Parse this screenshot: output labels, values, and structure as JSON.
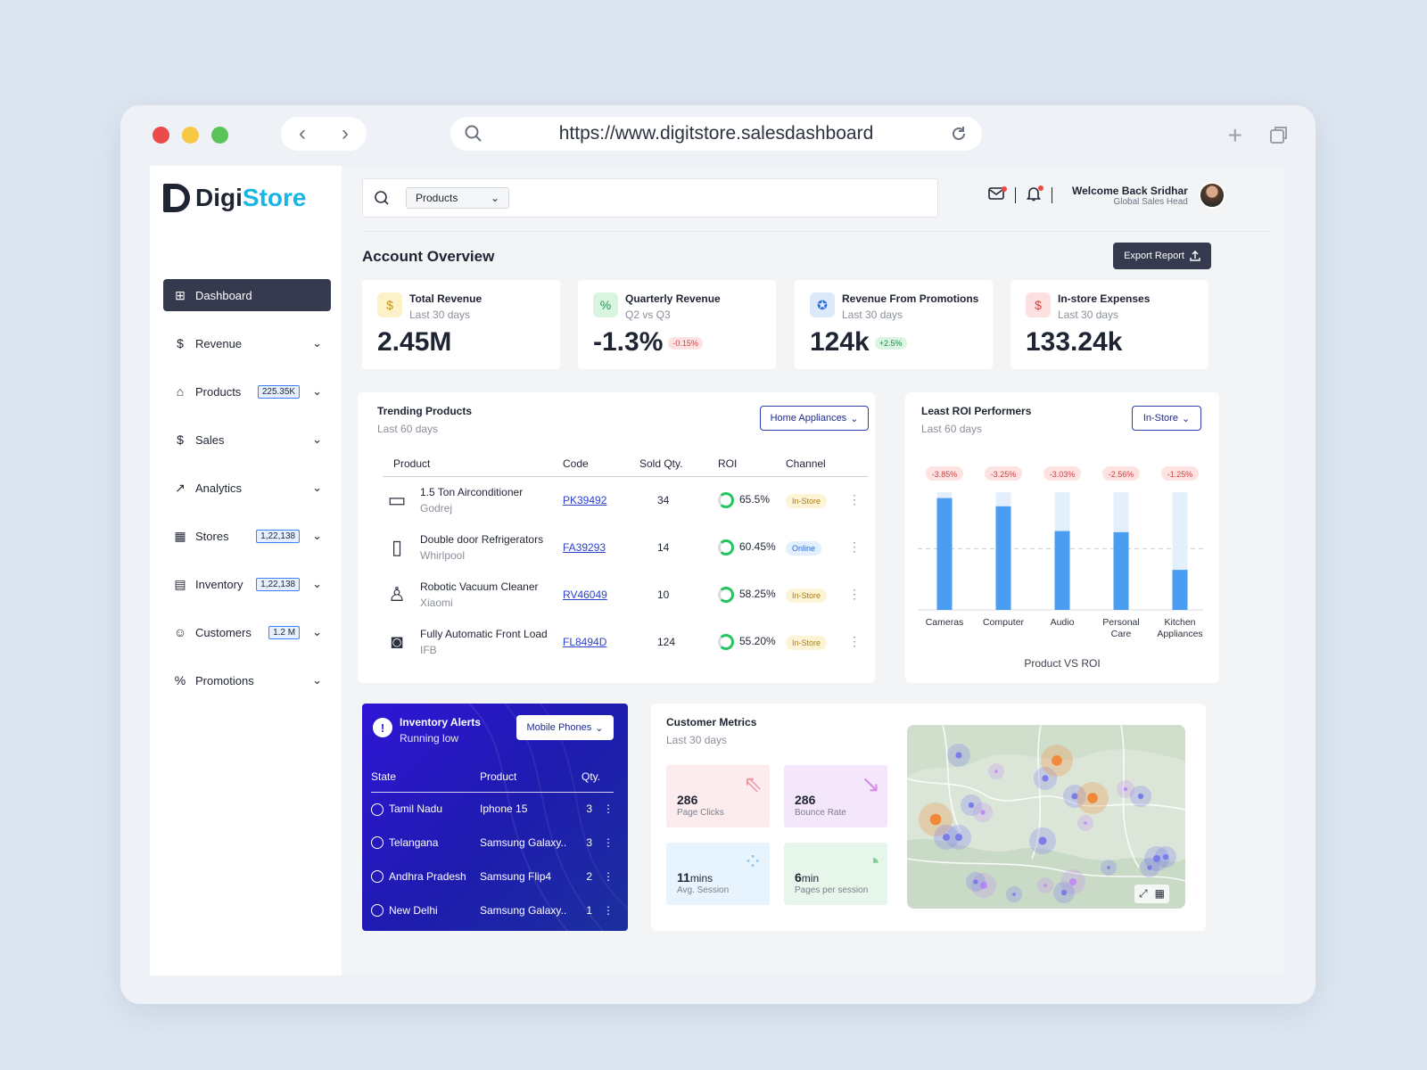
{
  "browser": {
    "url": "https://www.digitstore.salesdashboard",
    "back_glyph": "‹",
    "forward_glyph": "›",
    "new_tab_glyph": "+"
  },
  "brand": {
    "name_dark": "Digi",
    "name_accent": "Store"
  },
  "sidebar": {
    "items": [
      {
        "label": "Dashboard",
        "icon": "grid-icon",
        "badge": ""
      },
      {
        "label": "Revenue",
        "icon": "dollar-icon",
        "badge": ""
      },
      {
        "label": "Products",
        "icon": "bag-icon",
        "badge": "225.35K"
      },
      {
        "label": "Sales",
        "icon": "sales-icon",
        "badge": ""
      },
      {
        "label": "Analytics",
        "icon": "chart-line-icon",
        "badge": ""
      },
      {
        "label": "Stores",
        "icon": "store-icon",
        "badge": "1,22,138"
      },
      {
        "label": "Inventory",
        "icon": "inventory-icon",
        "badge": "1,22,138"
      },
      {
        "label": "Customers",
        "icon": "user-icon",
        "badge": "1.2 M"
      },
      {
        "label": "Promotions",
        "icon": "percent-icon",
        "badge": ""
      }
    ]
  },
  "header": {
    "search_category": "Products",
    "welcome": "Welcome Back Sridhar",
    "role": "Global Sales Head"
  },
  "overview": {
    "title": "Account Overview",
    "export_label": "Export Report"
  },
  "kpis": [
    {
      "title": "Total Revenue",
      "subtitle": "Last 30 days",
      "value": "2.45M",
      "change": ""
    },
    {
      "title": "Quarterly Revenue",
      "subtitle": "Q2 vs Q3",
      "value": "-1.3%",
      "change": "-0.15%"
    },
    {
      "title": "Revenue From Promotions",
      "subtitle": "Last 30 days",
      "value": "124k",
      "change": "+2.5%"
    },
    {
      "title": "In-store Expenses",
      "subtitle": "Last 30 days",
      "value": "133.24k",
      "change": ""
    }
  ],
  "trending": {
    "title": "Trending Products",
    "subtitle": "Last 60 days",
    "filter": "Home Appliances",
    "columns": [
      "Product",
      "Code",
      "Sold Qty.",
      "ROI",
      "Channel"
    ],
    "rows": [
      {
        "name": "1.5 Ton Airconditioner",
        "brand": "Godrej",
        "code": "PK39492",
        "qty": "34",
        "roi": "65.5%",
        "channel": "In-Store"
      },
      {
        "name": "Double door Refrigerators",
        "brand": "Whirlpool",
        "code": "FA39293",
        "qty": "14",
        "roi": "60.45%",
        "channel": "Online"
      },
      {
        "name": "Robotic Vacuum Cleaner",
        "brand": "Xiaomi",
        "code": "RV46049",
        "qty": "10",
        "roi": "58.25%",
        "channel": "In-Store"
      },
      {
        "name": "Fully Automatic Front Load",
        "brand": "IFB",
        "code": "FL8494D",
        "qty": "124",
        "roi": "55.20%",
        "channel": "In-Store"
      }
    ]
  },
  "roi_card": {
    "title": "Least ROI Performers",
    "subtitle": "Last 60 days",
    "filter": "In-Store"
  },
  "chart_data": {
    "type": "bar",
    "title": "",
    "xlabel": "Product VS ROI",
    "ylabel": "",
    "categories": [
      "Cameras",
      "Computer",
      "Audio",
      "Personal Care",
      "Kitchen Appliances"
    ],
    "category_lines": [
      [
        "Cameras"
      ],
      [
        "Computer"
      ],
      [
        "Audio"
      ],
      [
        "Personal",
        "Care"
      ],
      [
        "Kitchen",
        "Appliances"
      ]
    ],
    "data_labels": [
      "-3.85%",
      "-3.25%",
      "-3.03%",
      "-2.56%",
      "-1.25%"
    ],
    "values": [
      0.95,
      0.88,
      0.67,
      0.66,
      0.34
    ],
    "background_total": 1.0,
    "reference_line": 0.52,
    "ylim": [
      0,
      1
    ],
    "grid": false,
    "colors": {
      "bar": "#4a9df0",
      "track": "#e3f0fc",
      "label_bg": "#fde2e2",
      "label_fg": "#d14343"
    }
  },
  "inventory": {
    "title": "Inventory  Alerts",
    "subtitle": "Running low",
    "filter": "Mobile Phones",
    "columns": [
      "State",
      "Product",
      "Qty."
    ],
    "rows": [
      {
        "state": "Tamil Nadu",
        "product": "Iphone 15",
        "qty": "3"
      },
      {
        "state": "Telangana",
        "product": "Samsung Galaxy..",
        "qty": "3"
      },
      {
        "state": "Andhra Pradesh",
        "product": "Samsung Flip4",
        "qty": "2"
      },
      {
        "state": "New Delhi",
        "product": "Samsung Galaxy..",
        "qty": "1"
      }
    ]
  },
  "customer": {
    "title": "Customer Metrics",
    "subtitle": "Last 30 days",
    "metrics": [
      {
        "value": "286",
        "unit": "",
        "label": "Page Clicks",
        "icon": "cursor-click-icon",
        "bg": "#fdecee",
        "fg": "#f19aa4"
      },
      {
        "value": "286",
        "unit": "",
        "label": "Bounce Rate",
        "icon": "bounce-arrow-icon",
        "bg": "#f5e7fb",
        "fg": "#d48be8"
      },
      {
        "value": "11",
        "unit": "mins",
        "label": "Avg. Session",
        "icon": "loading-dots-icon",
        "bg": "#e7f3fd",
        "fg": "#8cc2ee"
      },
      {
        "value": "6",
        "unit": "min",
        "label": "Pages per session",
        "icon": "timer-icon",
        "bg": "#e6f6ea",
        "fg": "#7fd095"
      }
    ]
  },
  "colors": {
    "primary": "#363a4f",
    "accent": "#17b6e6",
    "link": "#2b3fd0",
    "inventory_bg": "#2f16d6"
  }
}
